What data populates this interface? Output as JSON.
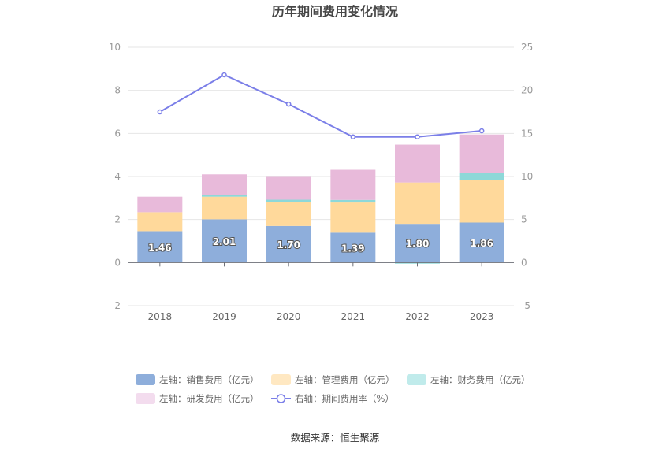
{
  "chart_data": {
    "type": "bar",
    "title": "历年期间费用变化情况",
    "categories": [
      "2018",
      "2019",
      "2020",
      "2021",
      "2022",
      "2023"
    ],
    "left_axis": {
      "ylim": [
        -2,
        10
      ],
      "ticks": [
        "-2",
        "0",
        "2",
        "4",
        "6",
        "8",
        "10"
      ]
    },
    "right_axis": {
      "ylim": [
        -5,
        25
      ],
      "ticks": [
        "-5",
        "0",
        "5",
        "10",
        "15",
        "20",
        "25"
      ]
    },
    "series": [
      {
        "name": "左轴：销售费用（亿元）",
        "type": "bar",
        "stack": "total",
        "color": "#8eaedb",
        "values": [
          1.46,
          2.01,
          1.7,
          1.39,
          1.8,
          1.86
        ],
        "labels": [
          "1.46",
          "2.01",
          "1.70",
          "1.39",
          "1.80",
          "1.86"
        ]
      },
      {
        "name": "左轴：管理费用（亿元）",
        "type": "bar",
        "stack": "total",
        "color": "#ffd99b",
        "legend_color": "#ffe8c2",
        "values": [
          0.88,
          1.05,
          1.1,
          1.4,
          1.92,
          1.99
        ]
      },
      {
        "name": "左轴：财务费用（亿元）",
        "type": "bar",
        "stack": "total",
        "color": "#8dd8d8",
        "legend_color": "#c0ebeb",
        "values": [
          0.0,
          0.08,
          0.12,
          0.12,
          -0.05,
          0.3
        ]
      },
      {
        "name": "左轴：研发费用（亿元）",
        "type": "bar",
        "stack": "total",
        "color": "#e8bada",
        "legend_color": "#f3dcee",
        "values": [
          0.72,
          0.96,
          1.06,
          1.4,
          1.76,
          1.8
        ]
      },
      {
        "name": "右轴：期间费用率（%）",
        "type": "line",
        "axis": "right",
        "color": "#7b7fe8",
        "values": [
          17.5,
          21.8,
          18.4,
          14.6,
          14.6,
          15.3
        ]
      }
    ],
    "grid": true,
    "legend_position": "bottom"
  },
  "source": "数据来源：恒生聚源"
}
